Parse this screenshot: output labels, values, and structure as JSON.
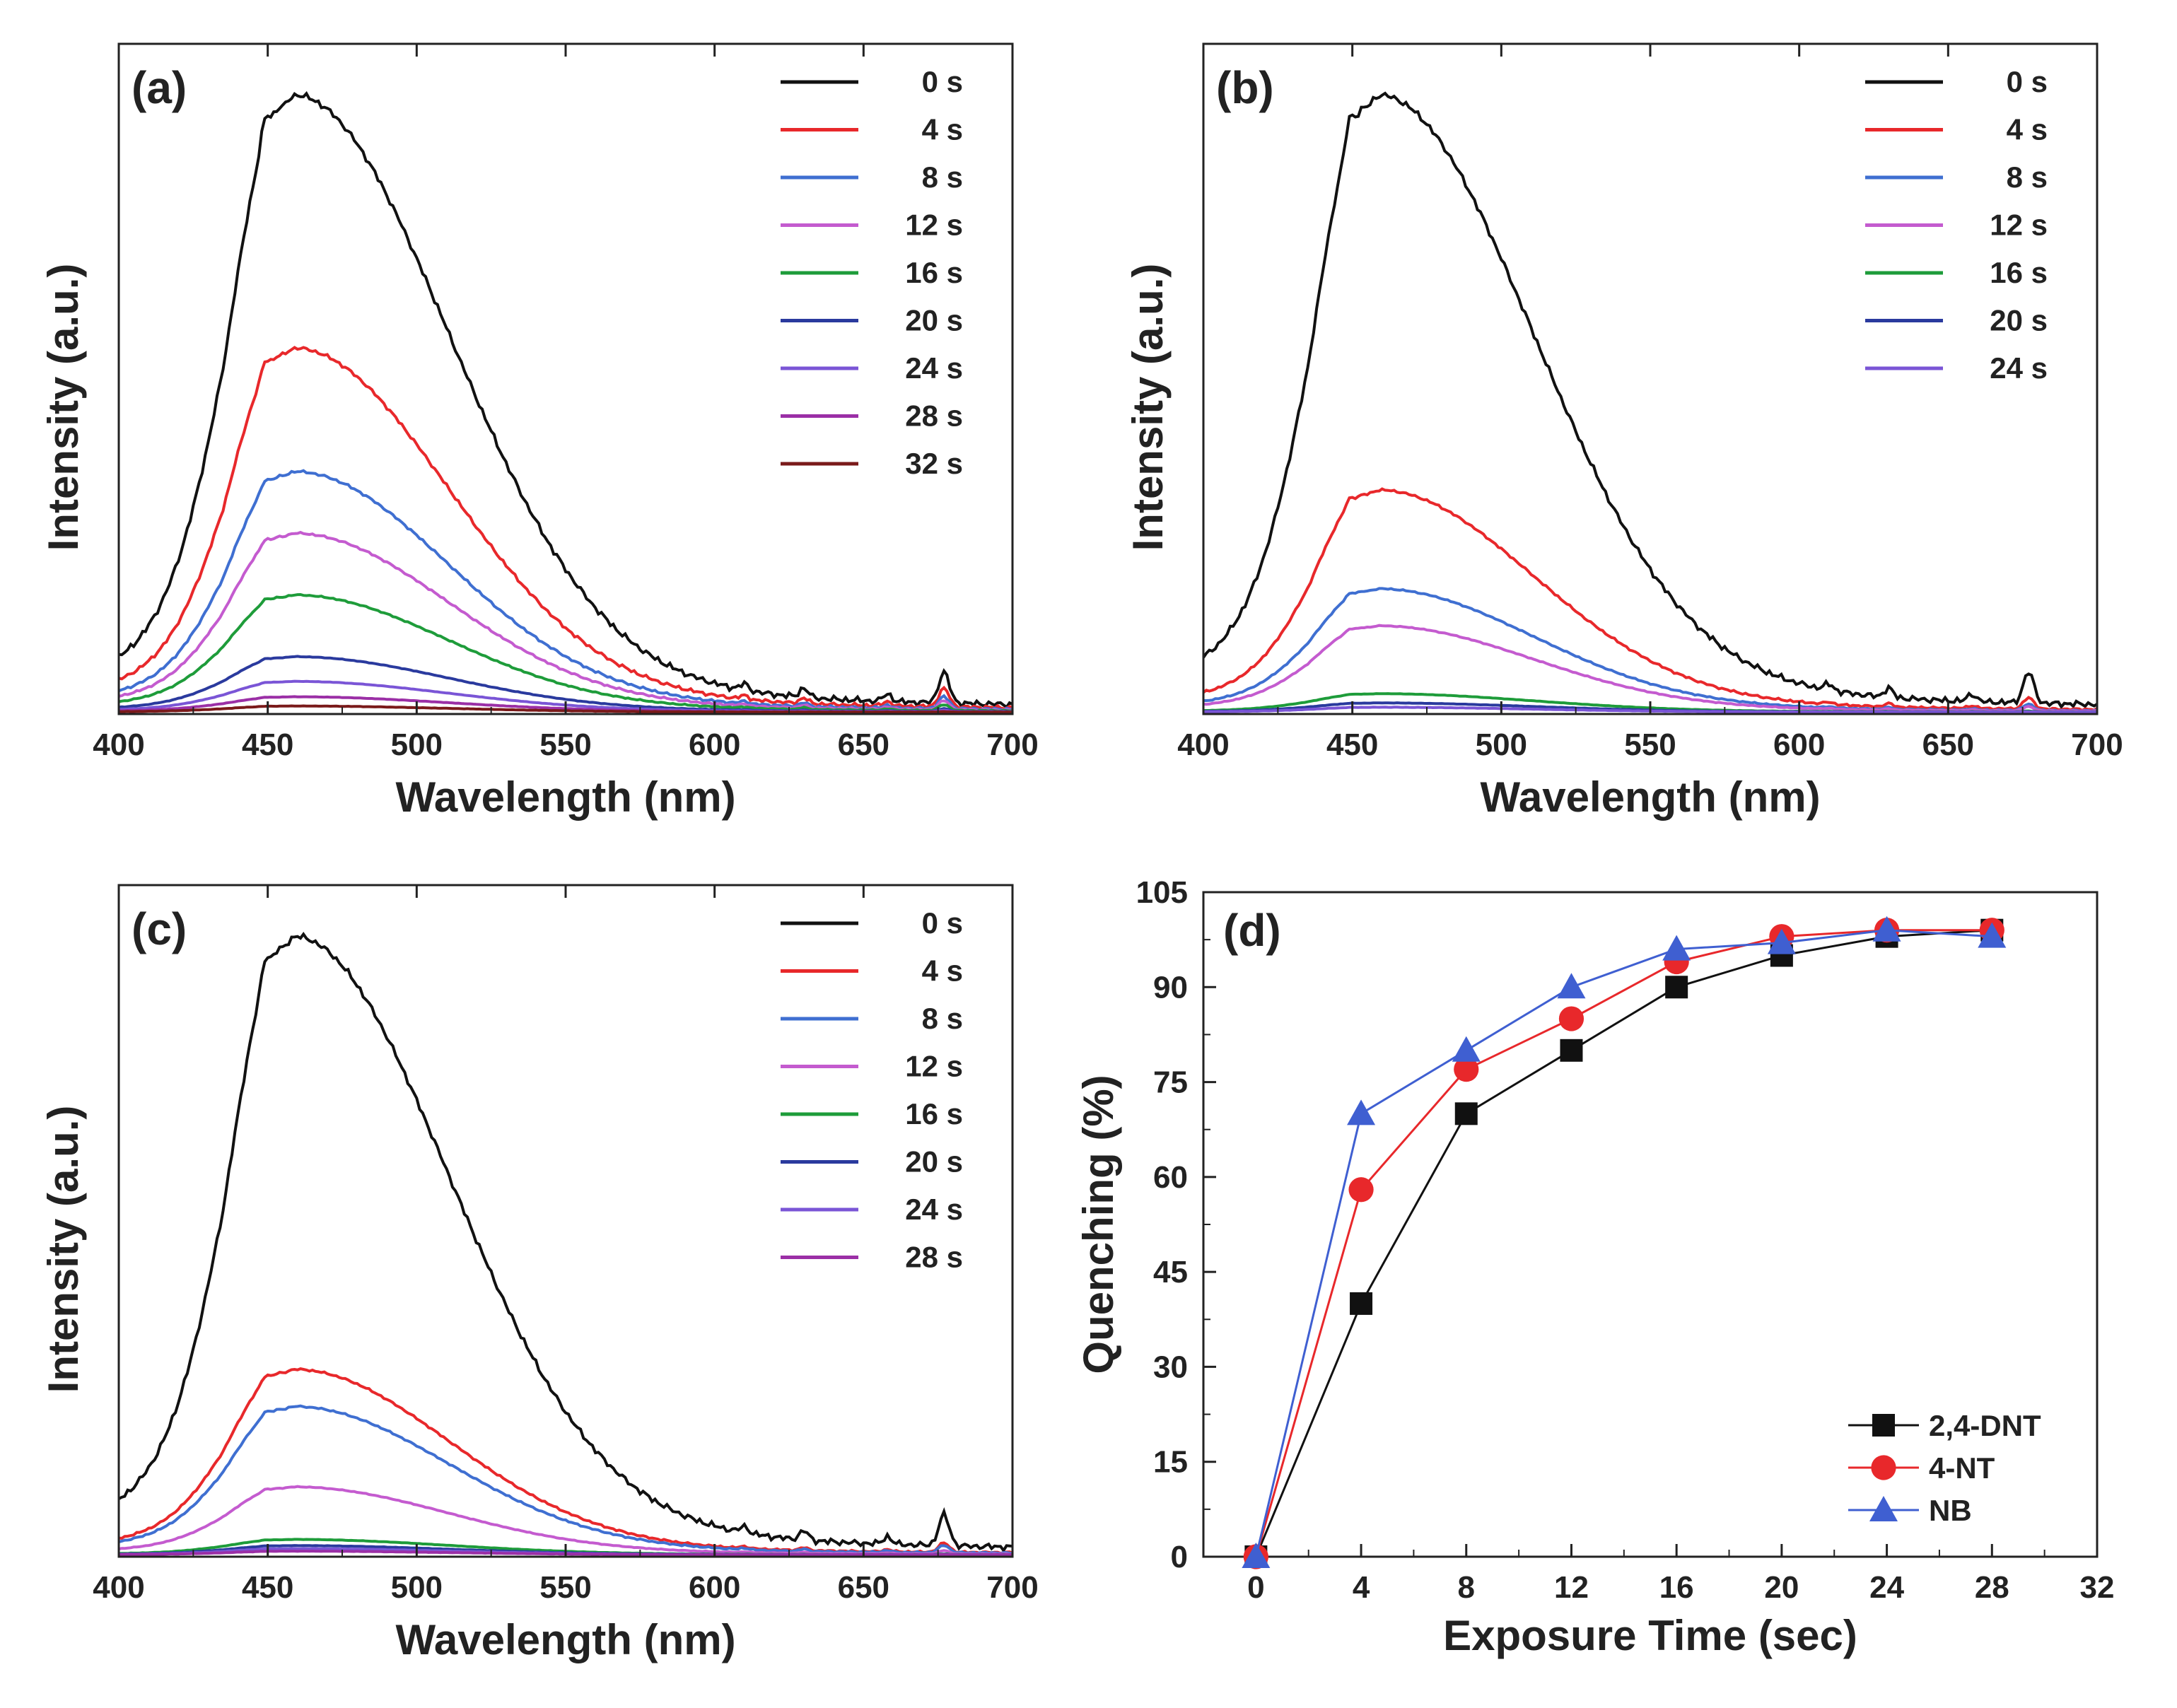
{
  "figure": {
    "colors": {
      "0 s": "#111111",
      "4 s": "#e8282b",
      "8 s": "#3f6fd1",
      "12 s": "#c45bcf",
      "16 s": "#1e9c3a",
      "20 s": "#2a3a9e",
      "24 s": "#7a55d6",
      "28 s": "#9b2fa6",
      "32 s": "#7a1a1a",
      "2,4-DNT": "#111111",
      "4-NT": "#e8282b",
      "NB": "#3f5fd1"
    }
  },
  "chart_data": [
    {
      "id": "a",
      "type": "line",
      "panel_label": "(a)",
      "xlabel": "Wavelength (nm)",
      "ylabel": "Intensity (a.u.)",
      "xlim": [
        400,
        700
      ],
      "ylim": [
        0,
        100
      ],
      "xticks": [
        "400",
        "450",
        "500",
        "550",
        "600",
        "650",
        "700"
      ],
      "yticks_shown": false,
      "peak_wavelength": 449,
      "legend_position": "top-right",
      "series": [
        {
          "name": "0 s",
          "peak": 100
        },
        {
          "name": "4 s",
          "peak": 59
        },
        {
          "name": "8 s",
          "peak": 39
        },
        {
          "name": "12 s",
          "peak": 29
        },
        {
          "name": "16 s",
          "peak": 19
        },
        {
          "name": "20 s",
          "peak": 9
        },
        {
          "name": "24 s",
          "peak": 5
        },
        {
          "name": "28 s",
          "peak": 2.5
        },
        {
          "name": "32 s",
          "peak": 1
        }
      ]
    },
    {
      "id": "b",
      "type": "line",
      "panel_label": "(b)",
      "xlabel": "Wavelength (nm)",
      "ylabel": "Intensity (a.u.)",
      "xlim": [
        400,
        700
      ],
      "ylim": [
        0,
        100
      ],
      "xticks": [
        "400",
        "450",
        "500",
        "550",
        "600",
        "650",
        "700"
      ],
      "yticks_shown": false,
      "peak_wavelength": 449,
      "legend_position": "top-right",
      "series": [
        {
          "name": "0 s",
          "peak": 100
        },
        {
          "name": "4 s",
          "peak": 36
        },
        {
          "name": "8 s",
          "peak": 20
        },
        {
          "name": "12 s",
          "peak": 14
        },
        {
          "name": "16 s",
          "peak": 3
        },
        {
          "name": "20 s",
          "peak": 1.5
        },
        {
          "name": "24 s",
          "peak": 0.8
        }
      ]
    },
    {
      "id": "c",
      "type": "line",
      "panel_label": "(c)",
      "xlabel": "Wavelength (nm)",
      "ylabel": "Intensity (a.u.)",
      "xlim": [
        400,
        700
      ],
      "ylim": [
        0,
        100
      ],
      "xticks": [
        "400",
        "450",
        "500",
        "550",
        "600",
        "650",
        "700"
      ],
      "yticks_shown": false,
      "peak_wavelength": 449,
      "legend_position": "top-right",
      "series": [
        {
          "name": "0 s",
          "peak": 100
        },
        {
          "name": "4 s",
          "peak": 30
        },
        {
          "name": "8 s",
          "peak": 24
        },
        {
          "name": "12 s",
          "peak": 11
        },
        {
          "name": "16 s",
          "peak": 2.5
        },
        {
          "name": "20 s",
          "peak": 1.5
        },
        {
          "name": "24 s",
          "peak": 1
        },
        {
          "name": "28 s",
          "peak": 0.6
        }
      ]
    },
    {
      "id": "d",
      "type": "line",
      "panel_label": "(d)",
      "xlabel": "Exposure Time (sec)",
      "ylabel": "Quenching (%)",
      "xlim": [
        -2,
        32
      ],
      "ylim": [
        0,
        105
      ],
      "xticks": [
        "0",
        "4",
        "8",
        "12",
        "16",
        "20",
        "24",
        "28",
        "32"
      ],
      "yticks": [
        "0",
        "15",
        "30",
        "45",
        "60",
        "75",
        "90",
        "105"
      ],
      "legend_position": "bottom-right",
      "x": [
        0,
        4,
        8,
        12,
        16,
        20,
        24,
        28
      ],
      "series": [
        {
          "name": "2,4-DNT",
          "marker": "square",
          "values": [
            0,
            40,
            70,
            80,
            90,
            95,
            98,
            99
          ]
        },
        {
          "name": "4-NT",
          "marker": "circle",
          "values": [
            0,
            58,
            77,
            85,
            94,
            98,
            99,
            99
          ]
        },
        {
          "name": "NB",
          "marker": "triangle",
          "values": [
            0,
            70,
            80,
            90,
            96,
            97,
            99,
            98
          ]
        }
      ]
    }
  ]
}
